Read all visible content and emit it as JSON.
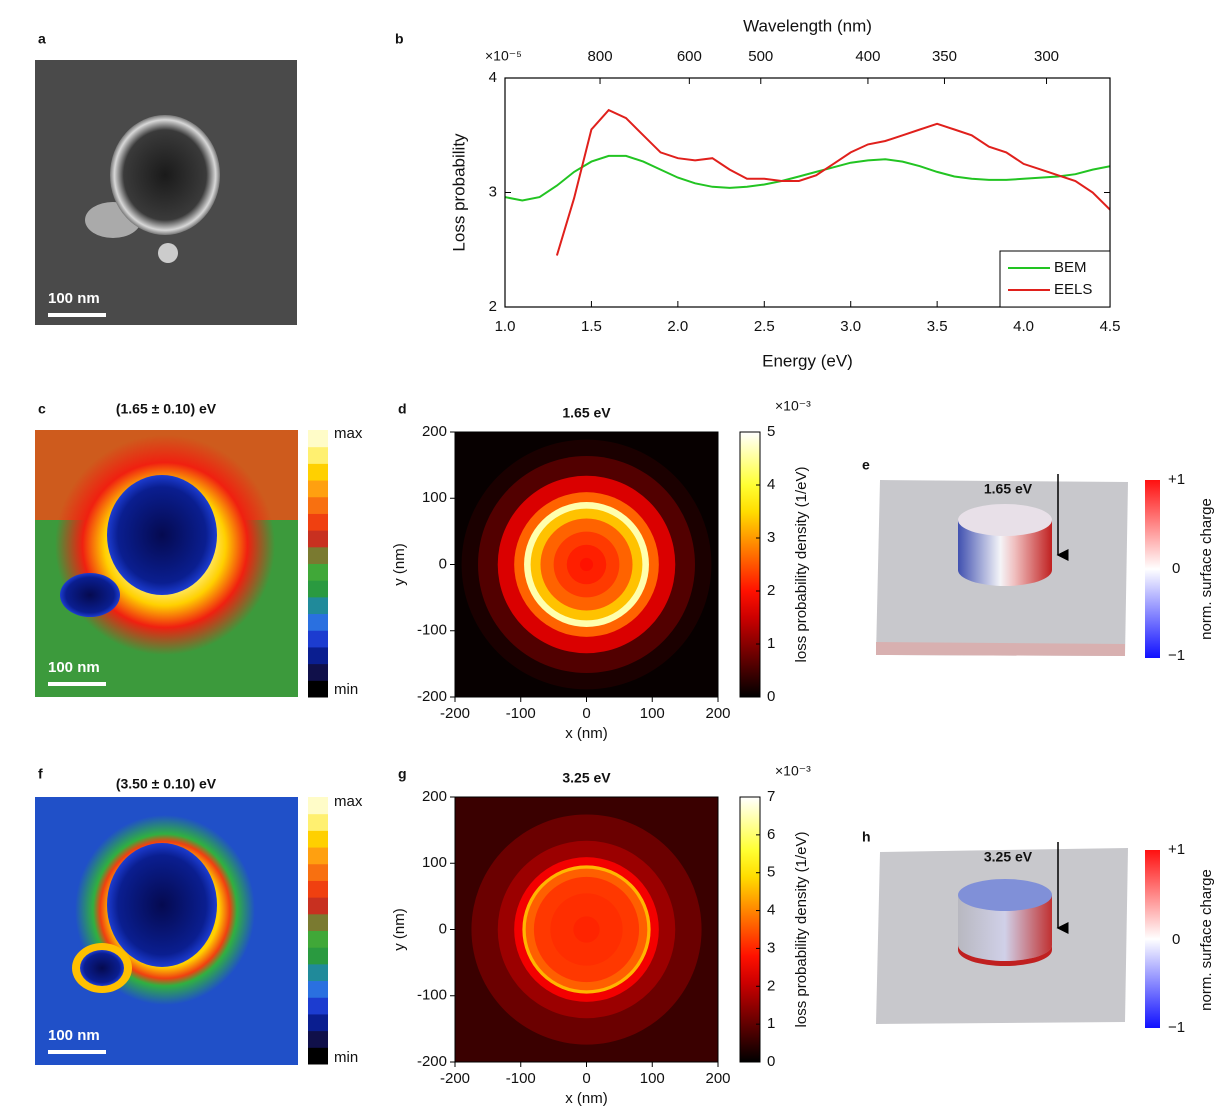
{
  "panels": {
    "a": {
      "label": "a",
      "scalebar": "100 nm"
    },
    "c": {
      "label": "c",
      "title": "(1.65 ± 0.10) eV",
      "scalebar": "100 nm",
      "cbar_max": "max",
      "cbar_min": "min"
    },
    "e": {
      "label": "e",
      "title": "1.65 eV",
      "cbar_label": "norm. surface charge",
      "cbar_ticks": [
        "+1",
        "0",
        "−1"
      ]
    },
    "f": {
      "label": "f",
      "title": "(3.50 ± 0.10) eV",
      "scalebar": "100 nm",
      "cbar_max": "max",
      "cbar_min": "min"
    },
    "h": {
      "label": "h",
      "title": "3.25 eV",
      "cbar_label": "norm. surface charge",
      "cbar_ticks": [
        "+1",
        "0",
        "−1"
      ]
    }
  },
  "chart_data": [
    {
      "type": "line",
      "label": "b",
      "x_label": "Energy (eV)",
      "y_label": "Loss probability",
      "y_multiplier": "×10⁻⁵",
      "x2_label": "Wavelength (nm)",
      "x2ticks": [
        800,
        600,
        500,
        400,
        350,
        300
      ],
      "xlim": [
        1,
        4.5
      ],
      "ylim": [
        2,
        4
      ],
      "xticks": [
        {
          "value": 1,
          "label": "1.0"
        },
        1.5,
        {
          "value": 2,
          "label": "2.0"
        },
        2.5,
        {
          "value": 3,
          "label": "3.0"
        },
        3.5,
        {
          "value": 4,
          "label": "4.0"
        },
        4.5
      ],
      "yticks": [
        2,
        3,
        4
      ],
      "legend": "lower right",
      "x": [
        1.0,
        1.1,
        1.2,
        1.3,
        1.4,
        1.5,
        1.6,
        1.7,
        1.8,
        1.9,
        2.0,
        2.1,
        2.2,
        2.3,
        2.4,
        2.5,
        2.6,
        2.7,
        2.8,
        2.9,
        3.0,
        3.1,
        3.2,
        3.3,
        3.4,
        3.5,
        3.6,
        3.7,
        3.8,
        3.9,
        4.0,
        4.1,
        4.2,
        4.3,
        4.4,
        4.5
      ],
      "series": [
        {
          "name": "BEM",
          "color": "#22c422",
          "values": [
            2.96,
            2.93,
            2.96,
            3.06,
            3.18,
            3.27,
            3.32,
            3.32,
            3.27,
            3.2,
            3.13,
            3.08,
            3.05,
            3.04,
            3.05,
            3.07,
            3.1,
            3.14,
            3.18,
            3.22,
            3.26,
            3.28,
            3.29,
            3.27,
            3.23,
            3.18,
            3.14,
            3.12,
            3.11,
            3.11,
            3.12,
            3.13,
            3.14,
            3.16,
            3.2,
            3.23
          ]
        },
        {
          "name": "EELS",
          "color": "#e0201c",
          "values": [
            null,
            null,
            null,
            2.45,
            2.95,
            3.55,
            3.72,
            3.65,
            3.5,
            3.35,
            3.3,
            3.28,
            3.3,
            3.2,
            3.12,
            3.12,
            3.1,
            3.1,
            3.15,
            3.25,
            3.35,
            3.42,
            3.45,
            3.5,
            3.55,
            3.6,
            3.55,
            3.5,
            3.4,
            3.35,
            3.25,
            3.2,
            3.15,
            3.1,
            3.0,
            2.85
          ]
        }
      ]
    },
    {
      "type": "heatmap",
      "label": "d",
      "title": "1.65 eV",
      "x_label": "x (nm)",
      "y_label": "y (nm)",
      "xlim": [
        -200,
        200
      ],
      "ylim": [
        -200,
        200
      ],
      "xticks": [
        -200,
        -100,
        0,
        100,
        200
      ],
      "yticks": [
        -200,
        -100,
        0,
        100,
        200
      ],
      "colorbar_label": "loss probability density (1/eV)",
      "colorbar_multiplier": "×10⁻³",
      "clim": [
        0,
        5
      ],
      "cticks": [
        0,
        1,
        2,
        3,
        4,
        5
      ],
      "radial_profile": {
        "r": [
          0,
          20,
          40,
          60,
          80,
          90,
          100,
          120,
          150,
          180,
          200
        ],
        "values": [
          2.0,
          2.1,
          2.3,
          2.6,
          3.3,
          4.6,
          2.6,
          1.6,
          0.6,
          0.2,
          0.05
        ]
      }
    },
    {
      "type": "heatmap",
      "label": "g",
      "title": "3.25 eV",
      "x_label": "x (nm)",
      "y_label": "y (nm)",
      "xlim": [
        -200,
        200
      ],
      "ylim": [
        -200,
        200
      ],
      "xticks": [
        -200,
        -100,
        0,
        100,
        200
      ],
      "yticks": [
        -200,
        -100,
        0,
        100,
        200
      ],
      "colorbar_label": "loss probability density (1/eV)",
      "colorbar_multiplier": "×10⁻³",
      "clim": [
        0,
        7
      ],
      "cticks": [
        0,
        1,
        2,
        3,
        4,
        5,
        6,
        7
      ],
      "radial_profile": {
        "r": [
          0,
          40,
          70,
          90,
          95,
          100,
          120,
          150,
          200
        ],
        "values": [
          3.0,
          3.1,
          3.2,
          3.6,
          4.5,
          2.5,
          1.6,
          1.1,
          0.6
        ]
      }
    }
  ]
}
